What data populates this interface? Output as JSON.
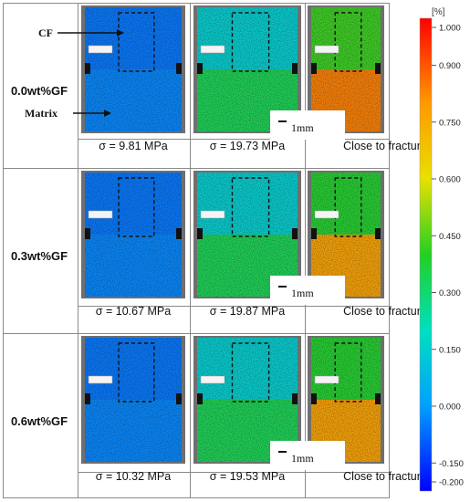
{
  "labels": {
    "cf": "CF",
    "matrix": "Matrix",
    "unit": "[%]",
    "fracture": "Close to fracture",
    "scale": "1mm"
  },
  "rows": [
    {
      "name": "0.0wt%GF",
      "stresses": [
        "σ = 9.81 MPa",
        "σ = 19.73 MPa"
      ],
      "levels": [
        0.15,
        0.45,
        0.85
      ]
    },
    {
      "name": "0.3wt%GF",
      "stresses": [
        "σ = 10.67 MPa",
        "σ = 19.87 MPa"
      ],
      "levels": [
        0.15,
        0.45,
        0.8
      ]
    },
    {
      "name": "0.6wt%GF",
      "stresses": [
        "σ = 10.32 MPa",
        "σ = 19.53 MPa"
      ],
      "levels": [
        0.15,
        0.45,
        0.8
      ]
    }
  ],
  "colorbar": {
    "ticks": [
      "1.000",
      "0.900",
      "0.750",
      "0.600",
      "0.450",
      "0.300",
      "0.150",
      "0.000",
      "-0.150",
      "-0.200"
    ],
    "tick_values": [
      1.0,
      0.9,
      0.75,
      0.6,
      0.45,
      0.3,
      0.15,
      0.0,
      -0.15,
      -0.2
    ],
    "colors": [
      "#ff0000",
      "#ff9a00",
      "#e8e000",
      "#22d022",
      "#00e0c0",
      "#00a0ff",
      "#0000ff"
    ]
  }
}
